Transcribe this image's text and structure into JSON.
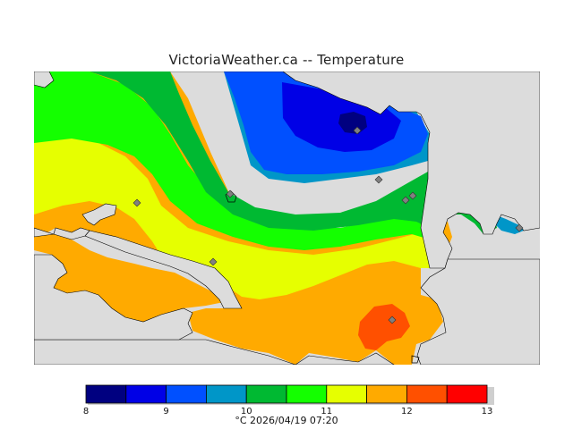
{
  "map": {
    "title": "VictoriaWeather.ca -- Temperature",
    "legend_caption": "°C  2026/04/19 07:20",
    "scale": {
      "min": 8,
      "max": 13,
      "step": 0.5,
      "tick_labels": [
        "8",
        "9",
        "10",
        "11",
        "12",
        "13"
      ],
      "colors": [
        "#000080",
        "#0000e6",
        "#0050ff",
        "#0096c8",
        "#00b932",
        "#14ff00",
        "#e6ff00",
        "#ffaa00",
        "#ff5000",
        "#ff0000"
      ]
    },
    "colors": {
      "background": "#dcdcdc",
      "ocean": "#dcdcdc",
      "station_marker": "#808080"
    },
    "stations": [
      {
        "name": "station",
        "temp": 8.3
      },
      {
        "name": "station",
        "temp": 10.0
      },
      {
        "name": "station",
        "temp": 10.5
      },
      {
        "name": "station",
        "temp": 10.6
      },
      {
        "name": "station",
        "temp": 10.6
      },
      {
        "name": "station",
        "temp": 11.3
      },
      {
        "name": "station",
        "temp": 10.0
      },
      {
        "name": "station",
        "temp": 11.6
      },
      {
        "name": "station",
        "temp": 12.5
      }
    ]
  }
}
